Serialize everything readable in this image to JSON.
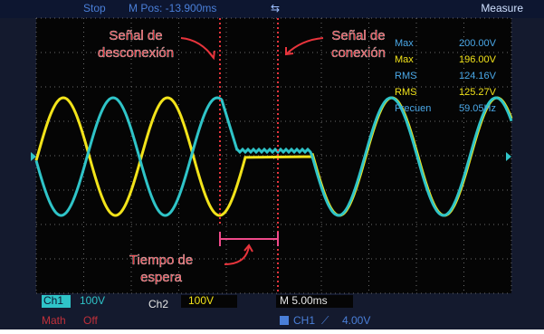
{
  "status_bar": {
    "state": "Stop",
    "position": "M Pos: -13.900ms",
    "menu": "Measure"
  },
  "annotations": {
    "disconnect": [
      "Señal de",
      "desconexión"
    ],
    "connect": [
      "Señal de",
      "conexión"
    ],
    "wait": [
      "Tiempo de",
      "espera"
    ]
  },
  "measurements": [
    {
      "label": "Max",
      "value": "200.00V"
    },
    {
      "label": "Max",
      "value": "196.00V"
    },
    {
      "label": "RMS",
      "value": "124.16V"
    },
    {
      "label": "RMS",
      "value": "125.27V"
    },
    {
      "label": "Frecuen",
      "value": "59.05Hz"
    }
  ],
  "bottom_bar": {
    "ch1": "Ch1",
    "ch1_scale": "100V",
    "ch2": "Ch2",
    "ch2_scale": "100V",
    "timebase": "M 5.00ms",
    "math": "Math",
    "math_state": "Off",
    "trigger_source": "CH1",
    "trigger_level": "4.00V"
  }
}
